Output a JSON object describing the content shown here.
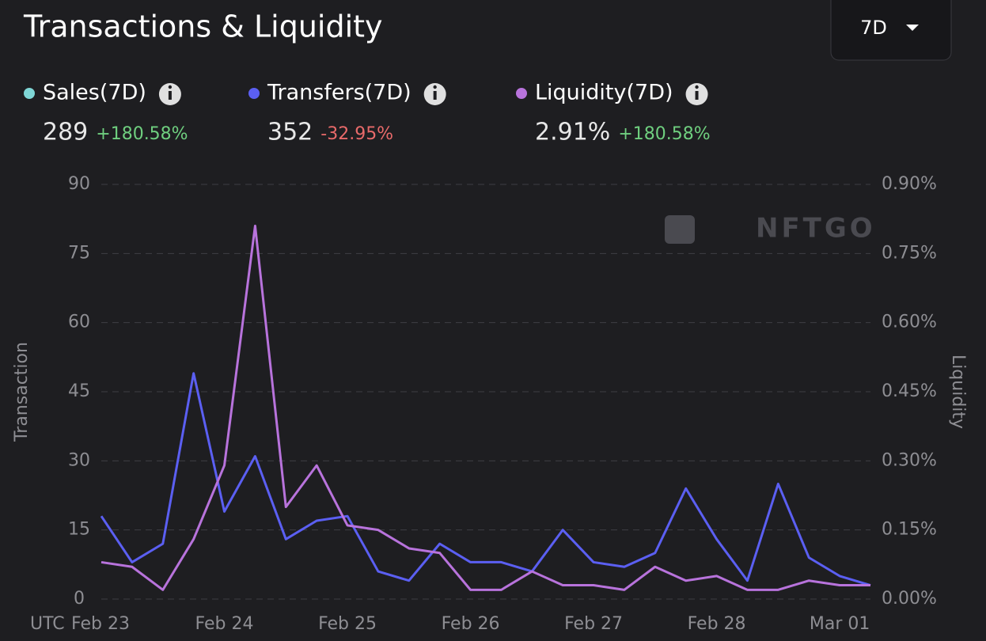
{
  "chart_data": {
    "type": "line",
    "title": "Transactions & Liquidity",
    "range_selector": "7D",
    "watermark": "NFTGO",
    "stats": [
      {
        "name": "Sales(7D)",
        "color": "#7fd6d6",
        "value": "289",
        "change": "+180.58%",
        "change_color": "#6fcf7f"
      },
      {
        "name": "Transfers(7D)",
        "color": "#5b5ff2",
        "value": "352",
        "change": "-32.95%",
        "change_color": "#e86a6a"
      },
      {
        "name": "Liquidity(7D)",
        "color": "#b873dc",
        "value": "2.91%",
        "change": "+180.58%",
        "change_color": "#6fcf7f"
      }
    ],
    "x_prefix": "UTC",
    "categories": [
      "Feb 23",
      null,
      null,
      null,
      "Feb 24",
      null,
      null,
      null,
      "Feb 25",
      null,
      null,
      null,
      "Feb 26",
      null,
      null,
      null,
      "Feb 27",
      null,
      null,
      null,
      "Feb 28",
      null,
      null,
      null,
      "Mar 01",
      null
    ],
    "y_label": "Transaction",
    "y2_label": "Liquidity",
    "ylim": [
      0,
      90
    ],
    "yticks": [
      0,
      15,
      30,
      45,
      60,
      75,
      90
    ],
    "y2lim": [
      0,
      0.9
    ],
    "y2ticks": [
      {
        "value": 0,
        "label": "0.00%"
      },
      {
        "value": 0.15,
        "label": "0.15%"
      },
      {
        "value": 0.3,
        "label": "0.30%"
      },
      {
        "value": 0.45,
        "label": "0.45%"
      },
      {
        "value": 0.6,
        "label": "0.60%"
      },
      {
        "value": 0.75,
        "label": "0.75%"
      },
      {
        "value": 0.9,
        "label": "0.90%"
      }
    ],
    "grid": true,
    "series": [
      {
        "name": "Transfers",
        "color": "#5b5ff2",
        "values": [
          18,
          8,
          12,
          49,
          19,
          31,
          13,
          17,
          18,
          6,
          4,
          12,
          8,
          8,
          6,
          15,
          8,
          7,
          10,
          24,
          13,
          4,
          25,
          9,
          5,
          3
        ]
      },
      {
        "name": "Liquidity",
        "color": "#b873dc",
        "axis": "y2",
        "values": [
          0.08,
          0.07,
          0.02,
          0.13,
          0.29,
          0.81,
          0.2,
          0.29,
          0.16,
          0.15,
          0.11,
          0.1,
          0.02,
          0.02,
          0.06,
          0.03,
          0.03,
          0.02,
          0.07,
          0.04,
          0.05,
          0.02,
          0.02,
          0.04,
          0.03,
          0.03
        ]
      }
    ]
  }
}
